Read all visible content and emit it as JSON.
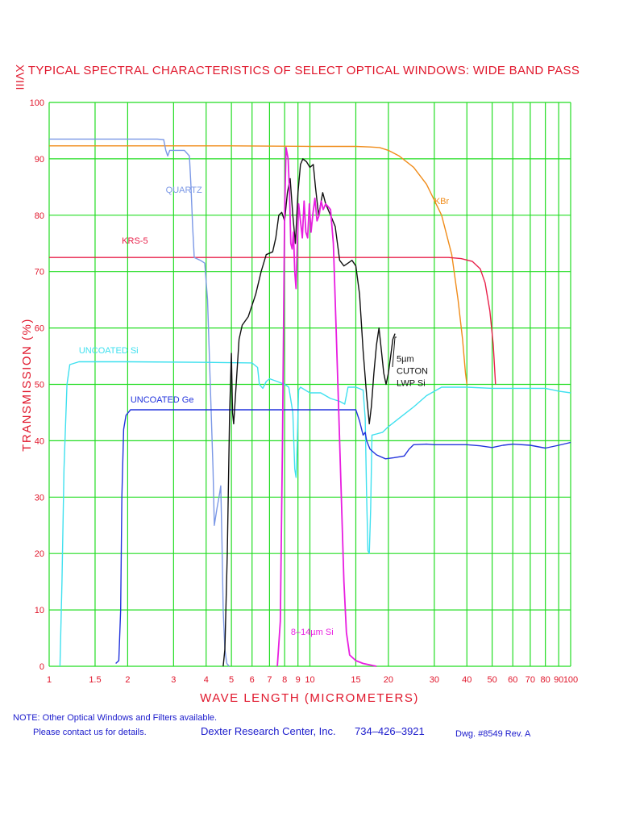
{
  "corner_mark": "XVIII",
  "chart_data": {
    "type": "line",
    "title": "TYPICAL SPECTRAL CHARACTERISTICS OF SELECT OPTICAL WINDOWS: WIDE BAND PASS",
    "xlabel": "WAVE LENGTH (MICROMETERS)",
    "ylabel": "TRANSMISSION (%)",
    "x_scale": "log",
    "xlim": [
      1,
      100
    ],
    "ylim": [
      0,
      100
    ],
    "grid": true,
    "grid_color": "#22dd22",
    "x_ticks": [
      {
        "v": 1,
        "t": "1"
      },
      {
        "v": 1.5,
        "t": "1.5"
      },
      {
        "v": 2,
        "t": "2"
      },
      {
        "v": 3,
        "t": "3"
      },
      {
        "v": 4,
        "t": "4"
      },
      {
        "v": 5,
        "t": "5"
      },
      {
        "v": 6,
        "t": "6"
      },
      {
        "v": 7,
        "t": "7"
      },
      {
        "v": 8,
        "t": "8"
      },
      {
        "v": 9,
        "t": "9"
      },
      {
        "v": 10,
        "t": "10"
      },
      {
        "v": 15,
        "t": "15"
      },
      {
        "v": 20,
        "t": "20"
      },
      {
        "v": 30,
        "t": "30"
      },
      {
        "v": 40,
        "t": "40"
      },
      {
        "v": 50,
        "t": "50"
      },
      {
        "v": 60,
        "t": "60"
      },
      {
        "v": 70,
        "t": "70"
      },
      {
        "v": 80,
        "t": "80"
      },
      {
        "v": 90,
        "t": "90"
      },
      {
        "v": 100,
        "t": "100"
      }
    ],
    "x_grid": [
      1,
      1.5,
      2,
      3,
      4,
      5,
      6,
      7,
      8,
      9,
      10,
      15,
      20,
      30,
      40,
      50,
      60,
      70,
      80,
      90,
      100
    ],
    "y_ticks": [
      {
        "v": 0,
        "t": "0"
      },
      {
        "v": 10,
        "t": "10"
      },
      {
        "v": 20,
        "t": "20"
      },
      {
        "v": 30,
        "t": "30"
      },
      {
        "v": 40,
        "t": "40"
      },
      {
        "v": 50,
        "t": "50"
      },
      {
        "v": 60,
        "t": "60"
      },
      {
        "v": 70,
        "t": "70"
      },
      {
        "v": 80,
        "t": "80"
      },
      {
        "v": 90,
        "t": "90"
      },
      {
        "v": 100,
        "t": "100"
      }
    ],
    "series": [
      {
        "name": "KBr",
        "color": "#f08c1a",
        "label": {
          "text": "KBr",
          "x": 30,
          "y": 82
        },
        "points": [
          [
            1,
            92.3
          ],
          [
            5,
            92.3
          ],
          [
            10,
            92.2
          ],
          [
            15,
            92.2
          ],
          [
            17,
            92.1
          ],
          [
            18.5,
            92
          ],
          [
            20,
            91.5
          ],
          [
            22,
            90.5
          ],
          [
            25,
            88.5
          ],
          [
            28,
            85.5
          ],
          [
            32,
            80
          ],
          [
            35,
            73
          ],
          [
            37,
            65
          ],
          [
            38.5,
            58
          ],
          [
            39.5,
            52
          ],
          [
            40,
            50
          ]
        ]
      },
      {
        "name": "KRS-5",
        "color": "#e8204a",
        "label": {
          "text": "KRS-5",
          "x": 1.9,
          "y": 75
        },
        "points": [
          [
            1,
            72.5
          ],
          [
            10,
            72.5
          ],
          [
            20,
            72.5
          ],
          [
            30,
            72.5
          ],
          [
            34,
            72.5
          ],
          [
            38,
            72.3
          ],
          [
            42,
            71.8
          ],
          [
            45,
            70.5
          ],
          [
            47,
            68
          ],
          [
            49,
            63
          ],
          [
            50.5,
            57
          ],
          [
            51.5,
            50
          ]
        ]
      },
      {
        "name": "QUARTZ",
        "color": "#7b98e6",
        "label": {
          "text": "QUARTZ",
          "x": 2.8,
          "y": 84
        },
        "points": [
          [
            1,
            93.5
          ],
          [
            2.6,
            93.5
          ],
          [
            2.75,
            93.4
          ],
          [
            2.8,
            91.5
          ],
          [
            2.85,
            90.5
          ],
          [
            2.9,
            91.5
          ],
          [
            3,
            91.5
          ],
          [
            3.3,
            91.5
          ],
          [
            3.45,
            90.5
          ],
          [
            3.5,
            85
          ],
          [
            3.55,
            78
          ],
          [
            3.6,
            72.5
          ],
          [
            3.8,
            72
          ],
          [
            3.95,
            71.5
          ],
          [
            4.05,
            65
          ],
          [
            4.15,
            50
          ],
          [
            4.25,
            35
          ],
          [
            4.3,
            25
          ],
          [
            4.4,
            28
          ],
          [
            4.5,
            30.5
          ],
          [
            4.55,
            32
          ],
          [
            4.6,
            22
          ],
          [
            4.65,
            10
          ],
          [
            4.72,
            3
          ],
          [
            4.8,
            0.5
          ],
          [
            4.9,
            0
          ]
        ]
      },
      {
        "name": "UNCOATED Si",
        "color": "#3fe0ef",
        "label": {
          "text": "UNCOATED Si",
          "x": 1.3,
          "y": 55.5
        },
        "points": [
          [
            1.1,
            0
          ],
          [
            1.12,
            15
          ],
          [
            1.14,
            35
          ],
          [
            1.17,
            50
          ],
          [
            1.2,
            53.5
          ],
          [
            1.3,
            54
          ],
          [
            2,
            54
          ],
          [
            4,
            53.9
          ],
          [
            6,
            53.8
          ],
          [
            6.3,
            53
          ],
          [
            6.4,
            50
          ],
          [
            6.6,
            49.3
          ],
          [
            6.8,
            50.5
          ],
          [
            7,
            51
          ],
          [
            7.5,
            50.5
          ],
          [
            8,
            50
          ],
          [
            8.3,
            49.5
          ],
          [
            8.6,
            45
          ],
          [
            8.75,
            35
          ],
          [
            8.85,
            33.5
          ],
          [
            8.95,
            40
          ],
          [
            9.05,
            49
          ],
          [
            9.2,
            49.5
          ],
          [
            10,
            48.5
          ],
          [
            11,
            48.5
          ],
          [
            12,
            47.5
          ],
          [
            13,
            47
          ],
          [
            13.6,
            46.5
          ],
          [
            14,
            49.5
          ],
          [
            15,
            49.5
          ],
          [
            16,
            49
          ],
          [
            16.3,
            44
          ],
          [
            16.5,
            30
          ],
          [
            16.7,
            20.5
          ],
          [
            16.9,
            20
          ],
          [
            17.1,
            28
          ],
          [
            17.3,
            41
          ],
          [
            18,
            41.2
          ],
          [
            19,
            41.5
          ],
          [
            20,
            42.5
          ],
          [
            22,
            44
          ],
          [
            25,
            46
          ],
          [
            28,
            48
          ],
          [
            32,
            49.5
          ],
          [
            40,
            49.5
          ],
          [
            50,
            49.3
          ],
          [
            60,
            49.3
          ],
          [
            80,
            49.3
          ],
          [
            90,
            48.8
          ],
          [
            100,
            48.5
          ]
        ]
      },
      {
        "name": "UNCOATED Ge",
        "color": "#2233dd",
        "label": {
          "text": "UNCOATED Ge",
          "x": 2.05,
          "y": 46.8
        },
        "points": [
          [
            1.8,
            0.5
          ],
          [
            1.85,
            1
          ],
          [
            1.88,
            10
          ],
          [
            1.9,
            30
          ],
          [
            1.93,
            42
          ],
          [
            1.97,
            44.5
          ],
          [
            2.05,
            45.5
          ],
          [
            3,
            45.5
          ],
          [
            5,
            45.5
          ],
          [
            10,
            45.5
          ],
          [
            14,
            45.5
          ],
          [
            15,
            45.5
          ],
          [
            15.5,
            43.5
          ],
          [
            16,
            41
          ],
          [
            16.3,
            41.5
          ],
          [
            16.5,
            40
          ],
          [
            17,
            38.5
          ],
          [
            18,
            37.5
          ],
          [
            19.5,
            36.8
          ],
          [
            21,
            37
          ],
          [
            23,
            37.3
          ],
          [
            24,
            38.5
          ],
          [
            25,
            39.3
          ],
          [
            28,
            39.4
          ],
          [
            30,
            39.3
          ],
          [
            40,
            39.3
          ],
          [
            45,
            39.1
          ],
          [
            50,
            38.8
          ],
          [
            55,
            39.2
          ],
          [
            60,
            39.4
          ],
          [
            70,
            39.2
          ],
          [
            80,
            38.7
          ],
          [
            90,
            39.2
          ],
          [
            100,
            39.7
          ]
        ]
      },
      {
        "name": "5µm CUTON LWP Si",
        "color": "#111111",
        "label_lines": [
          "5µm",
          "CUTON",
          "LWP Si"
        ],
        "label": {
          "text": "5µm",
          "x": 21.5,
          "y": 54
        },
        "points": [
          [
            4.65,
            0
          ],
          [
            4.72,
            3
          ],
          [
            4.82,
            20
          ],
          [
            4.92,
            45
          ],
          [
            5.0,
            55.5
          ],
          [
            5.05,
            45
          ],
          [
            5.1,
            43
          ],
          [
            5.2,
            49
          ],
          [
            5.35,
            58
          ],
          [
            5.5,
            60.5
          ],
          [
            5.8,
            62
          ],
          [
            6.2,
            66
          ],
          [
            6.5,
            70
          ],
          [
            6.8,
            73
          ],
          [
            7.2,
            73.5
          ],
          [
            7.4,
            76
          ],
          [
            7.6,
            80
          ],
          [
            7.8,
            80.5
          ],
          [
            8.0,
            79
          ],
          [
            8.2,
            84
          ],
          [
            8.4,
            86.5
          ],
          [
            8.6,
            80
          ],
          [
            8.8,
            75
          ],
          [
            9.0,
            84
          ],
          [
            9.2,
            89
          ],
          [
            9.4,
            90
          ],
          [
            9.7,
            89.5
          ],
          [
            10.0,
            88.5
          ],
          [
            10.3,
            89
          ],
          [
            10.5,
            85
          ],
          [
            10.8,
            80
          ],
          [
            11.2,
            84
          ],
          [
            11.5,
            82
          ],
          [
            12,
            80
          ],
          [
            12.5,
            78
          ],
          [
            13,
            72
          ],
          [
            13.5,
            71
          ],
          [
            14,
            71.5
          ],
          [
            14.5,
            72
          ],
          [
            15,
            71
          ],
          [
            15.5,
            66
          ],
          [
            16,
            56
          ],
          [
            16.5,
            48
          ],
          [
            16.9,
            43
          ],
          [
            17.2,
            46
          ],
          [
            17.6,
            52
          ],
          [
            18,
            57
          ],
          [
            18.4,
            60
          ],
          [
            18.8,
            56
          ],
          [
            19.2,
            52
          ],
          [
            19.6,
            50
          ],
          [
            20,
            52
          ],
          [
            20.4,
            55
          ],
          [
            20.8,
            58
          ],
          [
            21.2,
            59
          ]
        ]
      },
      {
        "name": "8-14µm Si",
        "color": "#e81ee0",
        "label": {
          "text": "8–14µm Si",
          "x": 8.45,
          "y": 5.6
        },
        "points": [
          [
            7.5,
            0
          ],
          [
            7.7,
            8
          ],
          [
            7.85,
            40
          ],
          [
            8.0,
            80
          ],
          [
            8.1,
            92
          ],
          [
            8.25,
            90
          ],
          [
            8.35,
            84
          ],
          [
            8.45,
            75
          ],
          [
            8.55,
            74
          ],
          [
            8.65,
            77
          ],
          [
            8.75,
            70
          ],
          [
            8.85,
            67
          ],
          [
            8.95,
            75
          ],
          [
            9.05,
            82
          ],
          [
            9.2,
            79
          ],
          [
            9.35,
            76
          ],
          [
            9.5,
            82.5
          ],
          [
            9.65,
            77
          ],
          [
            9.8,
            76
          ],
          [
            9.95,
            82
          ],
          [
            10.1,
            77
          ],
          [
            10.25,
            80
          ],
          [
            10.45,
            83
          ],
          [
            10.65,
            79
          ],
          [
            10.85,
            80
          ],
          [
            11.05,
            82.5
          ],
          [
            11.25,
            81
          ],
          [
            11.5,
            82
          ],
          [
            11.75,
            81.5
          ],
          [
            12,
            81
          ],
          [
            12.3,
            75
          ],
          [
            12.6,
            60
          ],
          [
            12.9,
            45
          ],
          [
            13.2,
            30
          ],
          [
            13.5,
            15
          ],
          [
            13.8,
            6
          ],
          [
            14.2,
            2
          ],
          [
            15,
            1
          ],
          [
            16,
            0.5
          ],
          [
            18,
            0
          ]
        ]
      }
    ]
  },
  "footer": {
    "note_line1": "NOTE: Other Optical Windows and Filters available.",
    "note_line2": "Please contact us for details.",
    "company": "Dexter Research Center, Inc.",
    "phone": "734–426–3921",
    "dwg": "Dwg. #8549 Rev. A"
  }
}
